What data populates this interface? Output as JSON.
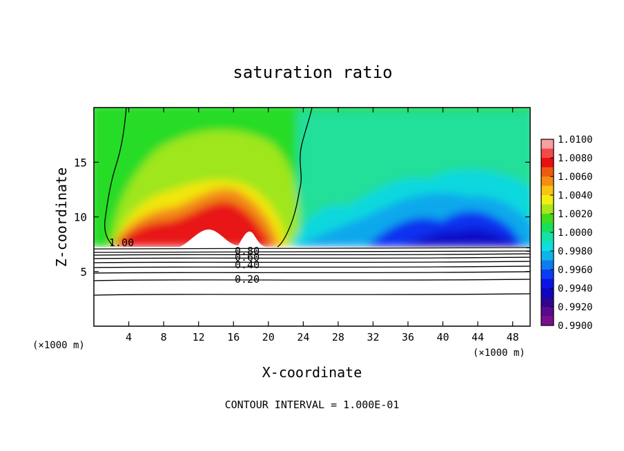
{
  "chart_data": {
    "type": "heatmap",
    "title": "saturation ratio",
    "xlabel": "X-coordinate",
    "ylabel": "Z-coordinate",
    "x_unit_left": "(×1000 m)",
    "x_unit_right": "(×1000 m)",
    "footer": "CONTOUR INTERVAL = 1.000E-01",
    "xlim": [
      0,
      50
    ],
    "ylim": [
      0,
      20
    ],
    "x_ticks": [
      "4",
      "8",
      "12",
      "16",
      "20",
      "24",
      "28",
      "32",
      "36",
      "40",
      "44",
      "48"
    ],
    "y_ticks": [
      "5",
      "10",
      "15"
    ],
    "colorbar": {
      "min": 0.99,
      "max": 1.01,
      "labels": [
        "1.0100",
        "1.0080",
        "1.0060",
        "1.0040",
        "1.0020",
        "1.0000",
        "0.9980",
        "0.9960",
        "0.9940",
        "0.9920",
        "0.9900"
      ],
      "colors": [
        "#f7a0a0",
        "#f24a4a",
        "#e81010",
        "#f05a10",
        "#f58c14",
        "#f7c612",
        "#f2ef10",
        "#a9e61a",
        "#40dd1c",
        "#18df5a",
        "#14e3a8",
        "#10dede",
        "#10b2ea",
        "#0c7cee",
        "#0a3cf2",
        "#0a14e6",
        "#0c08c0",
        "#2e0490",
        "#5a0a8c",
        "#7a1090"
      ]
    },
    "contour_labels": [
      "1.00",
      "0.80",
      "0.60",
      "0.40",
      "0.20"
    ]
  }
}
